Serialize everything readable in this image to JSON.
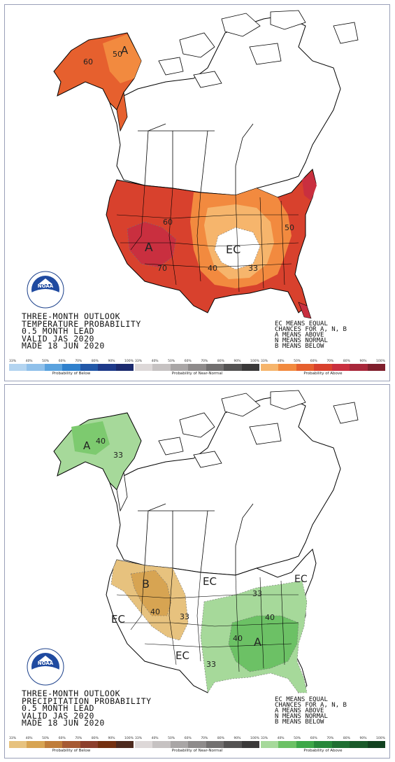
{
  "temperature_panel": {
    "stamp_lines": [
      "THREE-MONTH OUTLOOK",
      "TEMPERATURE PROBABILITY",
      "0.5 MONTH LEAD",
      "VALID JAS 2020",
      "MADE 18 JUN 2020"
    ],
    "region_labels": {
      "alaska_a": "A",
      "west_a": "A",
      "ec": "EC"
    },
    "contour_labels": {
      "ak_50": "50",
      "ak_60": "60",
      "c60": "60",
      "c70": "70",
      "c40": "40",
      "c33": "33",
      "c50": "50"
    },
    "notes": [
      "EC MEANS EQUAL",
      "CHANCES FOR A, N, B",
      "A MEANS ABOVE",
      "N MEANS NORMAL",
      "B MEANS BELOW"
    ],
    "colorbars": [
      {
        "label": "Probability of Below",
        "ticks": [
          "33%",
          "40%",
          "50%",
          "60%",
          "70%",
          "80%",
          "90%",
          "100%"
        ],
        "colors": [
          "#b3d4f0",
          "#8fc0ea",
          "#5aa2de",
          "#2f80cc",
          "#2258a8",
          "#1e3a8a",
          "#1b2a6e"
        ]
      },
      {
        "label": "Probability of Near-Normal",
        "ticks": [
          "33%",
          "40%",
          "50%",
          "60%",
          "70%",
          "80%",
          "90%",
          "100%"
        ],
        "colors": [
          "#ddd8d8",
          "#c6c2c2",
          "#a9a6a6",
          "#8e8b8b",
          "#727070",
          "#545353",
          "#3a3939"
        ]
      },
      {
        "label": "Probability of Above",
        "ticks": [
          "33%",
          "40%",
          "50%",
          "60%",
          "70%",
          "80%",
          "90%",
          "100%"
        ],
        "colors": [
          "#f6b56c",
          "#f28a3f",
          "#e6602e",
          "#d8412d",
          "#c92f3f",
          "#a8273a",
          "#7f1f2c"
        ]
      }
    ]
  },
  "precipitation_panel": {
    "stamp_lines": [
      "THREE-MONTH OUTLOOK",
      "PRECIPITATION PROBABILITY",
      "0.5 MONTH LEAD",
      "VALID JAS 2020",
      "MADE 18 JUN 2020"
    ],
    "region_labels": {
      "alaska_a": "A",
      "nw_b": "B",
      "se_a": "A",
      "ec_west": "EC",
      "ec_plains": "EC",
      "ec_south": "EC",
      "ec_ne": "EC"
    },
    "contour_labels": {
      "ak_40": "40",
      "ak_33": "33",
      "b40": "40",
      "b33": "33",
      "se33": "33",
      "se40a": "40",
      "se40b": "40",
      "s33": "33"
    },
    "notes": [
      "EC MEANS EQUAL",
      "CHANCES FOR A, N, B",
      "A MEANS ABOVE",
      "N MEANS NORMAL",
      "B MEANS BELOW"
    ],
    "colorbars": [
      {
        "label": "Probability of Below",
        "ticks": [
          "33%",
          "40%",
          "50%",
          "60%",
          "70%",
          "80%",
          "90%",
          "100%"
        ],
        "colors": [
          "#e7c27e",
          "#d7a452",
          "#bf7d3a",
          "#a65a33",
          "#8c3f2c",
          "#743010",
          "#4d2a1e"
        ]
      },
      {
        "label": "Probability of Near-Normal",
        "ticks": [
          "33%",
          "40%",
          "50%",
          "60%",
          "70%",
          "80%",
          "90%",
          "100%"
        ],
        "colors": [
          "#ddd8d8",
          "#c6c2c2",
          "#a9a6a6",
          "#8e8b8b",
          "#727070",
          "#545353",
          "#3a3939"
        ]
      },
      {
        "label": "Probability of Above",
        "ticks": [
          "33%",
          "40%",
          "50%",
          "60%",
          "70%",
          "80%",
          "90%",
          "100%"
        ],
        "colors": [
          "#a6d99a",
          "#6cc165",
          "#3da748",
          "#27883a",
          "#1f6f32",
          "#1a5a2a",
          "#124220"
        ]
      }
    ]
  }
}
